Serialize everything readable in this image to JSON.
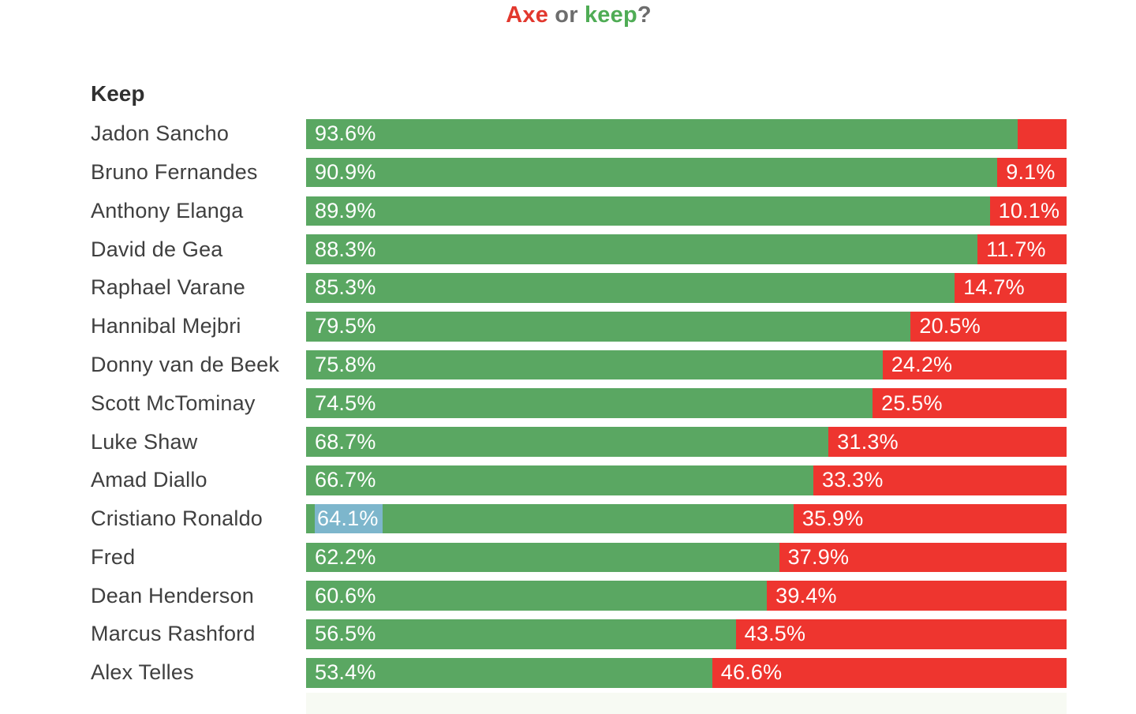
{
  "title": {
    "axe": "Axe",
    "or": " or ",
    "keep": "keep",
    "question": "?"
  },
  "section_label": "Keep",
  "colors": {
    "keep_green": "#5aa762",
    "axe_red": "#ee352f",
    "title_red": "#e2382e",
    "title_green": "#4fac55",
    "title_gray": "#6d6d6d",
    "name_text": "#3f3f3f",
    "heading_text": "#303030",
    "bar_label_white": "#ffffff",
    "highlight_blue": "#7db6cc",
    "faded_strip": "#f7faf3"
  },
  "chart_data": {
    "type": "bar",
    "orientation": "horizontal",
    "stacked": true,
    "title": "Axe or keep?",
    "series_names": [
      "Keep",
      "Axe"
    ],
    "legend_position": "none",
    "grid": false,
    "xlim": [
      0,
      100
    ],
    "players": [
      {
        "name": "Jadon Sancho",
        "keep": 93.6,
        "axe": 6.4,
        "keep_label": "93.6%",
        "axe_label": "",
        "highlighted": false
      },
      {
        "name": "Bruno Fernandes",
        "keep": 90.9,
        "axe": 9.1,
        "keep_label": "90.9%",
        "axe_label": "9.1%",
        "highlighted": false
      },
      {
        "name": "Anthony Elanga",
        "keep": 89.9,
        "axe": 10.1,
        "keep_label": "89.9%",
        "axe_label": "10.1%",
        "highlighted": false
      },
      {
        "name": "David de Gea",
        "keep": 88.3,
        "axe": 11.7,
        "keep_label": "88.3%",
        "axe_label": "11.7%",
        "highlighted": false
      },
      {
        "name": "Raphael Varane",
        "keep": 85.3,
        "axe": 14.7,
        "keep_label": "85.3%",
        "axe_label": "14.7%",
        "highlighted": false
      },
      {
        "name": "Hannibal Mejbri",
        "keep": 79.5,
        "axe": 20.5,
        "keep_label": "79.5%",
        "axe_label": "20.5%",
        "highlighted": false
      },
      {
        "name": "Donny van de Beek",
        "keep": 75.8,
        "axe": 24.2,
        "keep_label": "75.8%",
        "axe_label": "24.2%",
        "highlighted": false
      },
      {
        "name": "Scott McTominay",
        "keep": 74.5,
        "axe": 25.5,
        "keep_label": "74.5%",
        "axe_label": "25.5%",
        "highlighted": false
      },
      {
        "name": "Luke Shaw",
        "keep": 68.7,
        "axe": 31.3,
        "keep_label": "68.7%",
        "axe_label": "31.3%",
        "highlighted": false
      },
      {
        "name": "Amad Diallo",
        "keep": 66.7,
        "axe": 33.3,
        "keep_label": "66.7%",
        "axe_label": "33.3%",
        "highlighted": false
      },
      {
        "name": "Cristiano Ronaldo",
        "keep": 64.1,
        "axe": 35.9,
        "keep_label": "64.1%",
        "axe_label": "35.9%",
        "highlighted": true
      },
      {
        "name": "Fred",
        "keep": 62.2,
        "axe": 37.9,
        "keep_label": "62.2%",
        "axe_label": "37.9%",
        "highlighted": false
      },
      {
        "name": "Dean Henderson",
        "keep": 60.6,
        "axe": 39.4,
        "keep_label": "60.6%",
        "axe_label": "39.4%",
        "highlighted": false
      },
      {
        "name": "Marcus Rashford",
        "keep": 56.5,
        "axe": 43.5,
        "keep_label": "56.5%",
        "axe_label": "43.5%",
        "highlighted": false
      },
      {
        "name": "Alex Telles",
        "keep": 53.4,
        "axe": 46.6,
        "keep_label": "53.4%",
        "axe_label": "46.6%",
        "highlighted": false
      }
    ]
  }
}
